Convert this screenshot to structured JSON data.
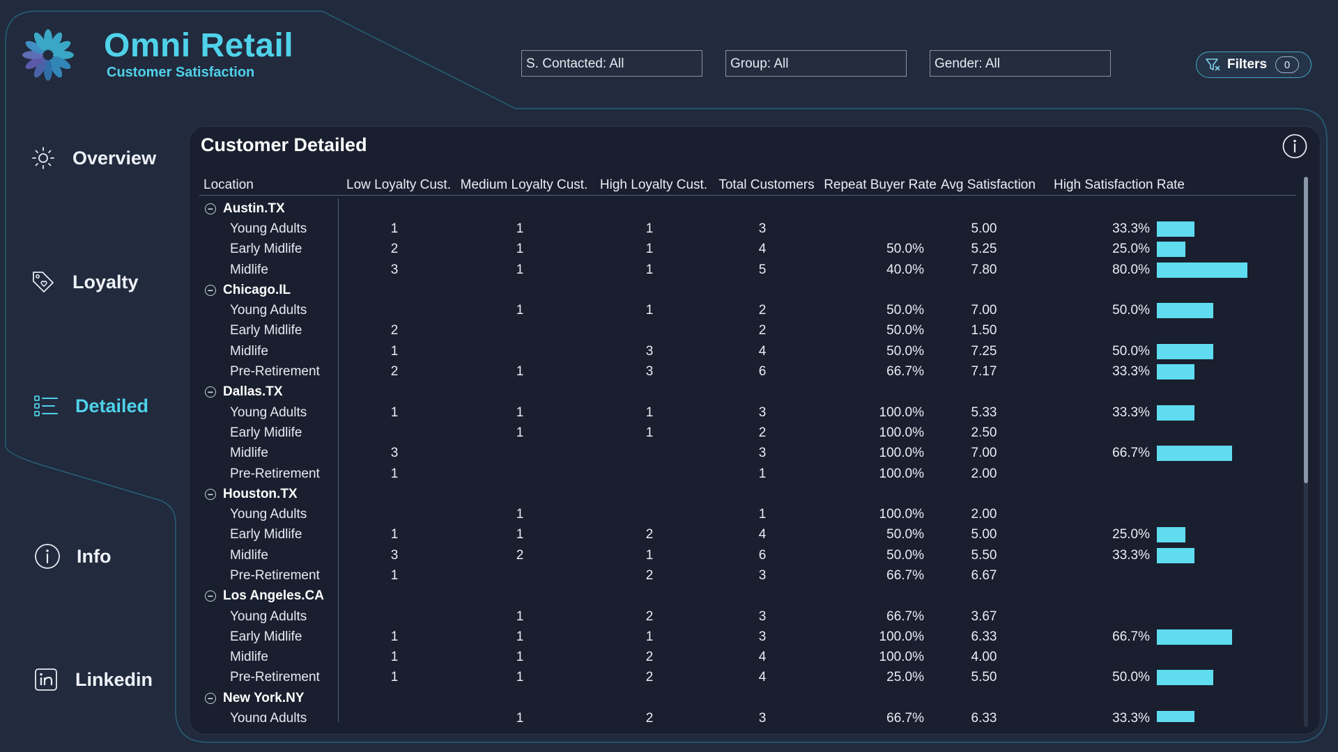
{
  "app": {
    "title": "Omni Retail",
    "subtitle": "Customer Satisfaction"
  },
  "filters": {
    "s_contacted": "S. Contacted: All",
    "group": "Group: All",
    "gender": "Gender: All",
    "filters_label": "Filters",
    "filters_count": "0"
  },
  "nav": {
    "items": [
      {
        "label": "Overview",
        "icon": "sun-icon"
      },
      {
        "label": "Loyalty",
        "icon": "tag-icon"
      },
      {
        "label": "Detailed",
        "icon": "list-icon",
        "active": true
      },
      {
        "label": "Info",
        "icon": "info-icon"
      },
      {
        "label": "Linkedin",
        "icon": "linkedin-icon"
      }
    ]
  },
  "panel": {
    "title": "Customer Detailed"
  },
  "colors": {
    "accent": "#4fd2ea",
    "bar": "#5fdcf0",
    "background": "#222a3d",
    "panel": "#191f2e"
  },
  "table": {
    "columns": [
      "Location",
      "Low Loyalty Cust.",
      "Medium Loyalty Cust.",
      "High Loyalty Cust.",
      "Total Customers",
      "Repeat Buyer Rate",
      "Avg Satisfaction",
      "High Satisfaction Rate"
    ],
    "groups": [
      {
        "name": "Austin.TX",
        "rows": [
          {
            "label": "Young Adults",
            "low": "1",
            "med": "1",
            "high": "1",
            "total": "3",
            "repeat": "",
            "avg": "5.00",
            "hsr": "33.3%",
            "hsr_value": 33.3
          },
          {
            "label": "Early Midlife",
            "low": "2",
            "med": "1",
            "high": "1",
            "total": "4",
            "repeat": "50.0%",
            "avg": "5.25",
            "hsr": "25.0%",
            "hsr_value": 25.0
          },
          {
            "label": "Midlife",
            "low": "3",
            "med": "1",
            "high": "1",
            "total": "5",
            "repeat": "40.0%",
            "avg": "7.80",
            "hsr": "80.0%",
            "hsr_value": 80.0
          }
        ]
      },
      {
        "name": "Chicago.IL",
        "rows": [
          {
            "label": "Young Adults",
            "low": "",
            "med": "1",
            "high": "1",
            "total": "2",
            "repeat": "50.0%",
            "avg": "7.00",
            "hsr": "50.0%",
            "hsr_value": 50.0
          },
          {
            "label": "Early Midlife",
            "low": "2",
            "med": "",
            "high": "",
            "total": "2",
            "repeat": "50.0%",
            "avg": "1.50",
            "hsr": "",
            "hsr_value": 0
          },
          {
            "label": "Midlife",
            "low": "1",
            "med": "",
            "high": "3",
            "total": "4",
            "repeat": "50.0%",
            "avg": "7.25",
            "hsr": "50.0%",
            "hsr_value": 50.0
          },
          {
            "label": "Pre-Retirement",
            "low": "2",
            "med": "1",
            "high": "3",
            "total": "6",
            "repeat": "66.7%",
            "avg": "7.17",
            "hsr": "33.3%",
            "hsr_value": 33.3
          }
        ]
      },
      {
        "name": "Dallas.TX",
        "rows": [
          {
            "label": "Young Adults",
            "low": "1",
            "med": "1",
            "high": "1",
            "total": "3",
            "repeat": "100.0%",
            "avg": "5.33",
            "hsr": "33.3%",
            "hsr_value": 33.3
          },
          {
            "label": "Early Midlife",
            "low": "",
            "med": "1",
            "high": "1",
            "total": "2",
            "repeat": "100.0%",
            "avg": "2.50",
            "hsr": "",
            "hsr_value": 0
          },
          {
            "label": "Midlife",
            "low": "3",
            "med": "",
            "high": "",
            "total": "3",
            "repeat": "100.0%",
            "avg": "7.00",
            "hsr": "66.7%",
            "hsr_value": 66.7
          },
          {
            "label": "Pre-Retirement",
            "low": "1",
            "med": "",
            "high": "",
            "total": "1",
            "repeat": "100.0%",
            "avg": "2.00",
            "hsr": "",
            "hsr_value": 0
          }
        ]
      },
      {
        "name": "Houston.TX",
        "rows": [
          {
            "label": "Young Adults",
            "low": "",
            "med": "1",
            "high": "",
            "total": "1",
            "repeat": "100.0%",
            "avg": "2.00",
            "hsr": "",
            "hsr_value": 0
          },
          {
            "label": "Early Midlife",
            "low": "1",
            "med": "1",
            "high": "2",
            "total": "4",
            "repeat": "50.0%",
            "avg": "5.00",
            "hsr": "25.0%",
            "hsr_value": 25.0
          },
          {
            "label": "Midlife",
            "low": "3",
            "med": "2",
            "high": "1",
            "total": "6",
            "repeat": "50.0%",
            "avg": "5.50",
            "hsr": "33.3%",
            "hsr_value": 33.3
          },
          {
            "label": "Pre-Retirement",
            "low": "1",
            "med": "",
            "high": "2",
            "total": "3",
            "repeat": "66.7%",
            "avg": "6.67",
            "hsr": "",
            "hsr_value": 0
          }
        ]
      },
      {
        "name": "Los Angeles.CA",
        "rows": [
          {
            "label": "Young Adults",
            "low": "",
            "med": "1",
            "high": "2",
            "total": "3",
            "repeat": "66.7%",
            "avg": "3.67",
            "hsr": "",
            "hsr_value": 0
          },
          {
            "label": "Early Midlife",
            "low": "1",
            "med": "1",
            "high": "1",
            "total": "3",
            "repeat": "100.0%",
            "avg": "6.33",
            "hsr": "66.7%",
            "hsr_value": 66.7
          },
          {
            "label": "Midlife",
            "low": "1",
            "med": "1",
            "high": "2",
            "total": "4",
            "repeat": "100.0%",
            "avg": "4.00",
            "hsr": "",
            "hsr_value": 0
          },
          {
            "label": "Pre-Retirement",
            "low": "1",
            "med": "1",
            "high": "2",
            "total": "4",
            "repeat": "25.0%",
            "avg": "5.50",
            "hsr": "50.0%",
            "hsr_value": 50.0
          }
        ]
      },
      {
        "name": "New York.NY",
        "rows": [
          {
            "label": "Young Adults",
            "low": "",
            "med": "1",
            "high": "2",
            "total": "3",
            "repeat": "66.7%",
            "avg": "6.33",
            "hsr": "33.3%",
            "hsr_value": 33.3
          }
        ]
      }
    ]
  }
}
